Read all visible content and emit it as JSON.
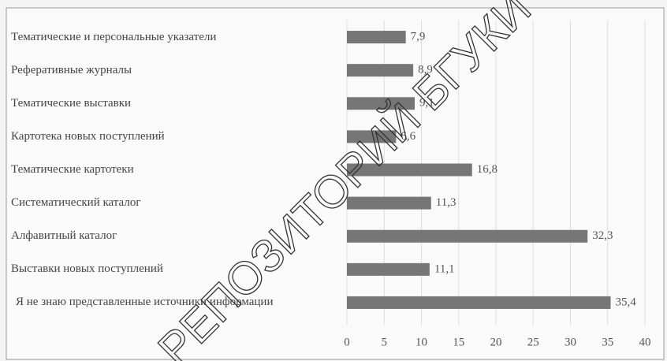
{
  "chart_data": {
    "type": "bar",
    "orientation": "horizontal",
    "categories": [
      "Тематические и персональные указатели",
      "Реферативные журналы",
      "Тематические выставки",
      "Картотека новых поступлений",
      "Тематические картотеки",
      "Систематический каталог",
      "Алфавитный каталог",
      "Выставки новых поступлений",
      "Я не знаю представленные источники информации"
    ],
    "values": [
      7.9,
      8.9,
      9.1,
      6.6,
      16.8,
      11.3,
      32.3,
      11.1,
      35.4
    ],
    "value_labels": [
      "7,9",
      "8,9",
      "9,1",
      "6,6",
      "16,8",
      "11,3",
      "32,3",
      "11,1",
      "35,4"
    ],
    "color": "#767676",
    "xlim": [
      0,
      40
    ],
    "xticks": [
      0,
      5,
      10,
      15,
      20,
      25,
      30,
      35,
      40
    ],
    "grid": true,
    "watermark": "РЕПОЗИТОРИЙ БГУКИ"
  }
}
